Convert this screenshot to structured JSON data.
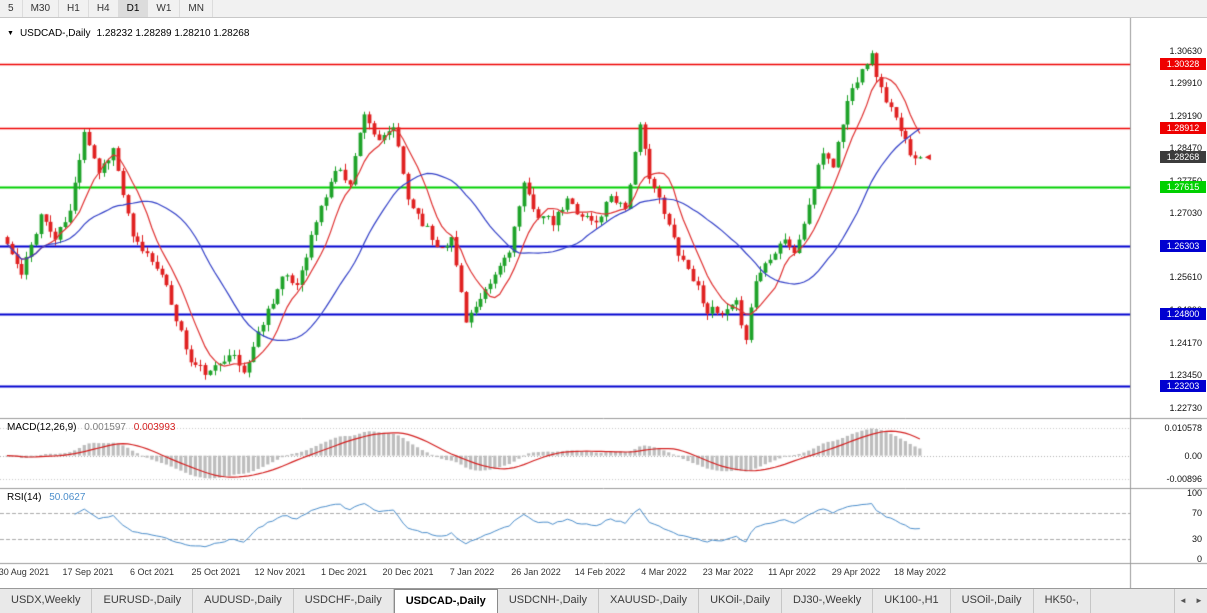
{
  "toolbar": {
    "timeframes": [
      "5",
      "M30",
      "H1",
      "H4",
      "D1",
      "W1",
      "MN"
    ],
    "active": "D1"
  },
  "chart": {
    "symbol_label": "USDCAD-,Daily",
    "ohlc": "1.28232 1.28289 1.28210 1.28268"
  },
  "chart_data": {
    "type": "candlestick",
    "symbol": "USDCAD-",
    "timeframe": "Daily",
    "open": "1.28232",
    "high": "1.28289",
    "low": "1.28210",
    "close": "1.28268",
    "close_value": 1.28268,
    "bars": 190,
    "seed": 11,
    "noise_amp": 0.0011,
    "wick_amp": 0.0015,
    "price_range": [
      1.225,
      1.3135
    ],
    "price_path": [
      [
        0,
        1.2635
      ],
      [
        3,
        1.2565
      ],
      [
        7,
        1.27
      ],
      [
        10,
        1.2645
      ],
      [
        13,
        1.2705
      ],
      [
        16,
        1.289
      ],
      [
        19,
        1.2795
      ],
      [
        22,
        1.2845
      ],
      [
        26,
        1.2645
      ],
      [
        31,
        1.259
      ],
      [
        34,
        1.2505
      ],
      [
        38,
        1.2372
      ],
      [
        42,
        1.2347
      ],
      [
        46,
        1.2398
      ],
      [
        49,
        1.235
      ],
      [
        53,
        1.2465
      ],
      [
        57,
        1.256
      ],
      [
        60,
        1.2545
      ],
      [
        64,
        1.2685
      ],
      [
        68,
        1.28
      ],
      [
        71,
        1.2775
      ],
      [
        74,
        1.293
      ],
      [
        77,
        1.2855
      ],
      [
        80,
        1.2895
      ],
      [
        83,
        1.2735
      ],
      [
        86,
        1.2685
      ],
      [
        89,
        1.263
      ],
      [
        92,
        1.2645
      ],
      [
        95,
        1.247
      ],
      [
        98,
        1.2505
      ],
      [
        101,
        1.2565
      ],
      [
        104,
        1.2625
      ],
      [
        107,
        1.276
      ],
      [
        110,
        1.27
      ],
      [
        113,
        1.268
      ],
      [
        116,
        1.273
      ],
      [
        119,
        1.27
      ],
      [
        122,
        1.268
      ],
      [
        125,
        1.2745
      ],
      [
        128,
        1.2715
      ],
      [
        131,
        1.289
      ],
      [
        133,
        1.279
      ],
      [
        136,
        1.27
      ],
      [
        139,
        1.262
      ],
      [
        142,
        1.256
      ],
      [
        145,
        1.249
      ],
      [
        148,
        1.2475
      ],
      [
        151,
        1.25
      ],
      [
        153,
        1.243
      ],
      [
        155,
        1.2555
      ],
      [
        158,
        1.261
      ],
      [
        161,
        1.265
      ],
      [
        163,
        1.261
      ],
      [
        166,
        1.272
      ],
      [
        169,
        1.284
      ],
      [
        171,
        1.281
      ],
      [
        174,
        1.295
      ],
      [
        177,
        1.303
      ],
      [
        179,
        1.305
      ],
      [
        181,
        1.2975
      ],
      [
        183,
        1.2935
      ],
      [
        185,
        1.288
      ],
      [
        187,
        1.284
      ],
      [
        189,
        1.28268
      ]
    ],
    "y_ticks": [
      "1.30630",
      "1.29910",
      "1.29190",
      "1.28470",
      "1.27750",
      "1.27030",
      "1.25610",
      "1.24890",
      "1.24170",
      "1.23450",
      "1.22730"
    ],
    "levels": [
      {
        "value": 1.30328,
        "label": "1.30328",
        "color": "#ee0000",
        "width": 1.4
      },
      {
        "value": 1.28912,
        "label": "1.28912",
        "color": "#ee0000",
        "width": 1.4
      },
      {
        "value": 1.27615,
        "label": "1.27615",
        "color": "#00d000",
        "width": 2.2
      },
      {
        "value": 1.26303,
        "label": "1.26303",
        "color": "#0000d0",
        "width": 2.2
      },
      {
        "value": 1.248,
        "label": "1.24800",
        "color": "#0000d0",
        "width": 2.2
      },
      {
        "value": 1.23203,
        "label": "1.23203",
        "color": "#0000d0",
        "width": 2.2
      }
    ],
    "current_price": {
      "label": "1.28268",
      "value": 1.28268,
      "color": "#3c3c3c"
    },
    "moving_averages": [
      {
        "period": 8,
        "color": "#e03333"
      },
      {
        "period": 25,
        "color": "#3340c8"
      }
    ],
    "candle_up": "#1fa32a",
    "candle_down": "#e02121",
    "x_labels": [
      "30 Aug 2021",
      "17 Sep 2021",
      "6 Oct 2021",
      "25 Oct 2021",
      "12 Nov 2021",
      "1 Dec 2021",
      "20 Dec 2021",
      "7 Jan 2022",
      "26 Jan 2022",
      "14 Feb 2022",
      "4 Mar 2022",
      "23 Mar 2022",
      "11 Apr 2022",
      "29 Apr 2022",
      "18 May 2022"
    ]
  },
  "macd": {
    "label": "MACD(12,26,9)",
    "value_main": "0.001597",
    "value_signal": "0.003993",
    "fast": 12,
    "slow": 26,
    "signal": 9,
    "scale_top": "0.010578",
    "scale_mid": "0.00",
    "scale_bottom": "-0.00896",
    "hist_color": "#bdbdbd",
    "signal_color": "#d42121"
  },
  "rsi": {
    "label": "RSI(14)",
    "value": "50.0627",
    "period": 14,
    "levels": [
      70,
      30
    ],
    "scale": [
      "100",
      "70",
      "30",
      "0"
    ],
    "line_color": "#4d8fcc"
  },
  "tabs": {
    "items": [
      "USDX,Weekly",
      "EURUSD-,Daily",
      "AUDUSD-,Daily",
      "USDCHF-,Daily",
      "USDCAD-,Daily",
      "USDCNH-,Daily",
      "XAUUSD-,Daily",
      "UKOil-,Daily",
      "DJ30-,Weekly",
      "UK100-,H1",
      "USOil-,Daily",
      "HK50-,"
    ],
    "active": "USDCAD-,Daily",
    "scroll_left": "◄",
    "scroll_right": "►"
  }
}
